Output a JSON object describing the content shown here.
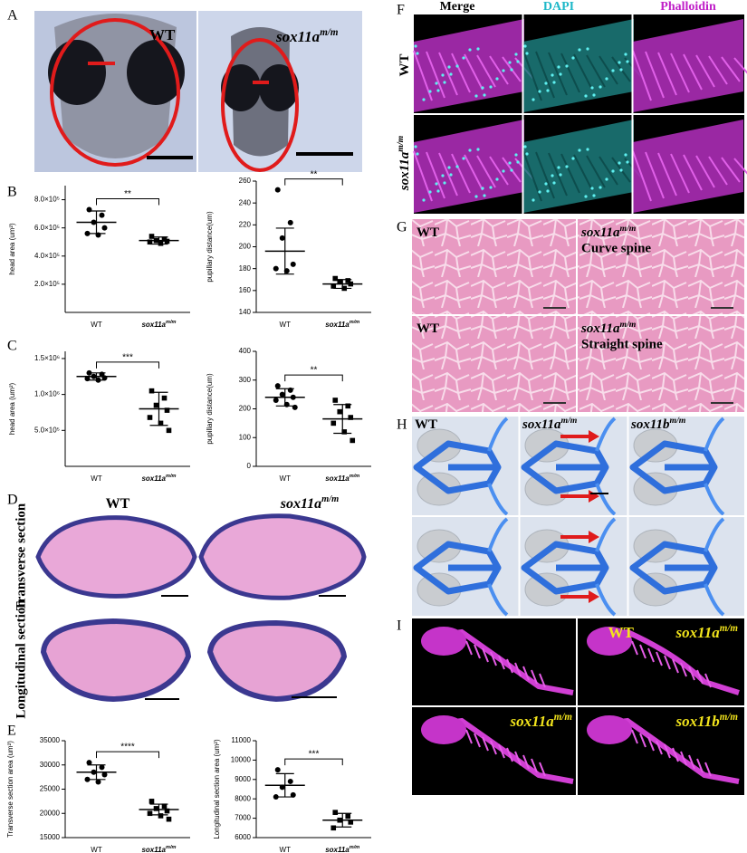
{
  "panel_labels": [
    "A",
    "B",
    "C",
    "D",
    "E",
    "F",
    "G",
    "H",
    "I"
  ],
  "panel_a": {
    "labels": [
      {
        "text": "WT"
      },
      {
        "text": "sox11a",
        "sup": "m/m"
      }
    ]
  },
  "chart_data": [
    {
      "type": "dotplot",
      "ylabel": "head area (um²)",
      "categories": [
        "WT",
        "sox11a"
      ],
      "mutant_sup": "m/m",
      "ylim": [
        0,
        900000
      ],
      "yticks": [
        {
          "value": 200000,
          "label": "2.0×10⁵"
        },
        {
          "value": 400000,
          "label": "4.0×10⁵"
        },
        {
          "value": 600000,
          "label": "6.0×10⁵"
        },
        {
          "value": 800000,
          "label": "8.0×10⁵"
        }
      ],
      "groups": [
        {
          "values": [
            730000,
            690000,
            640000,
            600000,
            560000,
            550000
          ],
          "mean": 640000,
          "sd": 80000
        },
        {
          "values": [
            540000,
            520000,
            510000,
            505000,
            500000,
            490000
          ],
          "mean": 510000,
          "sd": 25000
        }
      ],
      "significance": "**"
    },
    {
      "type": "dotplot",
      "ylabel": "pupillary distance(um)",
      "categories": [
        "WT",
        "sox11a"
      ],
      "mutant_sup": "m/m",
      "ylim": [
        140,
        260
      ],
      "yticks": [
        140,
        160,
        180,
        200,
        220,
        240,
        260
      ],
      "groups": [
        {
          "values": [
            252,
            222,
            208,
            184,
            180,
            178
          ],
          "mean": 196,
          "sd": 21
        },
        {
          "values": [
            171,
            169,
            168,
            166,
            164,
            162
          ],
          "mean": 166,
          "sd": 4
        }
      ],
      "significance": "**"
    },
    {
      "type": "dotplot",
      "ylabel": "head area (um²)",
      "categories": [
        "WT",
        "sox11a"
      ],
      "mutant_sup": "m/m",
      "ylim": [
        0,
        1600000
      ],
      "yticks": [
        {
          "value": 500000,
          "label": "5.0×10⁵"
        },
        {
          "value": 1000000,
          "label": "1.0×10⁶"
        },
        {
          "value": 1500000,
          "label": "1.5×10⁶"
        }
      ],
      "groups": [
        {
          "values": [
            1300000,
            1280000,
            1250000,
            1230000,
            1220000,
            1200000
          ],
          "mean": 1250000,
          "sd": 50000
        },
        {
          "values": [
            1050000,
            950000,
            850000,
            780000,
            680000,
            600000,
            500000
          ],
          "mean": 800000,
          "sd": 230000
        }
      ],
      "significance": "***"
    },
    {
      "type": "dotplot",
      "ylabel": "pupillary distance(um)",
      "categories": [
        "WT",
        "sox11a"
      ],
      "mutant_sup": "m/m",
      "ylim": [
        0,
        400
      ],
      "yticks": [
        0,
        100,
        200,
        300,
        400
      ],
      "groups": [
        {
          "values": [
            280,
            265,
            250,
            240,
            230,
            215,
            205
          ],
          "mean": 240,
          "sd": 30
        },
        {
          "values": [
            230,
            210,
            190,
            170,
            150,
            120,
            90
          ],
          "mean": 165,
          "sd": 50
        }
      ],
      "significance": "**"
    },
    {
      "type": "dotplot",
      "ylabel": "Transverse section area (um²)",
      "categories": [
        "WT",
        "sox11a"
      ],
      "mutant_sup": "m/m",
      "ylim": [
        15000,
        35000
      ],
      "yticks": [
        15000,
        20000,
        25000,
        30000,
        35000
      ],
      "groups": [
        {
          "values": [
            30500,
            29500,
            28500,
            28000,
            27000,
            26500
          ],
          "mean": 28500,
          "sd": 1500
        },
        {
          "values": [
            22500,
            21500,
            21000,
            20500,
            20000,
            19500,
            18800
          ],
          "mean": 20800,
          "sd": 1100
        }
      ],
      "significance": "****"
    },
    {
      "type": "dotplot",
      "ylabel": "Longitudinal section area (um²)",
      "categories": [
        "WT",
        "sox11a"
      ],
      "mutant_sup": "m/m",
      "ylim": [
        6000,
        11000
      ],
      "yticks": [
        6000,
        7000,
        8000,
        9000,
        10000,
        11000
      ],
      "groups": [
        {
          "values": [
            9500,
            8900,
            8600,
            8200,
            8100
          ],
          "mean": 8700,
          "sd": 600
        },
        {
          "values": [
            7300,
            7100,
            6900,
            6800,
            6500
          ],
          "mean": 6900,
          "sd": 350
        }
      ],
      "significance": "***"
    }
  ],
  "panel_d": {
    "columns": [
      {
        "text": "WT"
      },
      {
        "text": "sox11a",
        "sup": "m/m"
      }
    ],
    "rows": [
      "Transverse section",
      "Longitudinal section"
    ]
  },
  "panel_f": {
    "columns": [
      "Merge",
      "DAPI",
      "Phalloidin"
    ],
    "rows": [
      {
        "text": "WT"
      },
      {
        "text": "sox11a",
        "sup": "m/m"
      }
    ]
  },
  "panel_g": {
    "cells": [
      {
        "text": "WT"
      },
      {
        "text": "sox11a",
        "sup": "m/m",
        "note": "Curve spine"
      },
      {
        "text": "WT"
      },
      {
        "text": "sox11a",
        "sup": "m/m",
        "note": "Straight spine"
      }
    ]
  },
  "panel_h": {
    "columns": [
      {
        "text": "WT"
      },
      {
        "text": "sox11a",
        "sup": "m/m"
      },
      {
        "text": "sox11b",
        "sup": "m/m"
      }
    ]
  },
  "panel_i": {
    "cells": [
      {
        "text": "WT"
      },
      {
        "text": "sox11a",
        "sup": "m/m"
      },
      {
        "text": "sox11a",
        "sup": "m/m"
      },
      {
        "text": "sox11b",
        "sup": "m/m"
      }
    ]
  }
}
